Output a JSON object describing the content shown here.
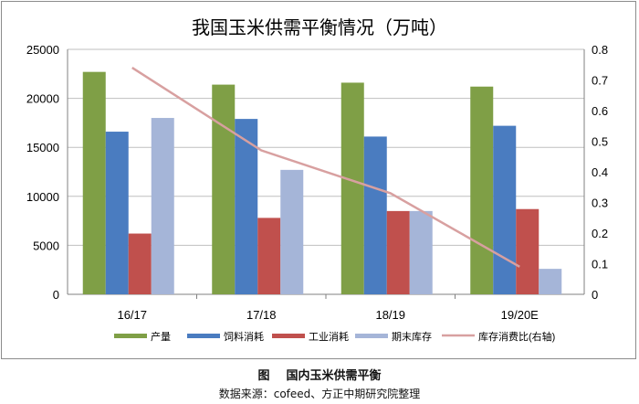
{
  "chart_data": {
    "type": "bar",
    "title": "我国玉米供需平衡情况（万吨）",
    "categories": [
      "16/17",
      "17/18",
      "18/19",
      "19/20E"
    ],
    "series": [
      {
        "name": "产量",
        "type": "bar",
        "axis": "left",
        "color": "#7f9f46",
        "values": [
          22700,
          21400,
          21600,
          21200
        ]
      },
      {
        "name": "饲料消耗",
        "type": "bar",
        "axis": "left",
        "color": "#4a7cc0",
        "values": [
          16600,
          17900,
          16100,
          17200
        ]
      },
      {
        "name": "工业消耗",
        "type": "bar",
        "axis": "left",
        "color": "#c0504d",
        "values": [
          6200,
          7800,
          8500,
          8700
        ]
      },
      {
        "name": "期末库存",
        "type": "bar",
        "axis": "left",
        "color": "#a5b5d8",
        "values": [
          18000,
          12700,
          8500,
          2600
        ]
      },
      {
        "name": "库存消费比(右轴)",
        "type": "line",
        "axis": "right",
        "color": "#d8a0a0",
        "values": [
          0.74,
          0.47,
          0.33,
          0.09
        ]
      }
    ],
    "y_left": {
      "min": 0,
      "max": 25000,
      "ticks": [
        "0",
        "5000",
        "10000",
        "15000",
        "20000",
        "25000"
      ]
    },
    "y_right": {
      "min": 0,
      "max": 0.8,
      "ticks": [
        "0",
        "0.1",
        "0.2",
        "0.3",
        "0.4",
        "0.5",
        "0.6",
        "0.7",
        "0.8"
      ]
    },
    "grid": true,
    "legend": "bottom"
  },
  "caption": {
    "figure_label": "图",
    "figure_title": "国内玉米供需平衡",
    "source": "数据来源：cofeed、方正中期研究院整理"
  }
}
